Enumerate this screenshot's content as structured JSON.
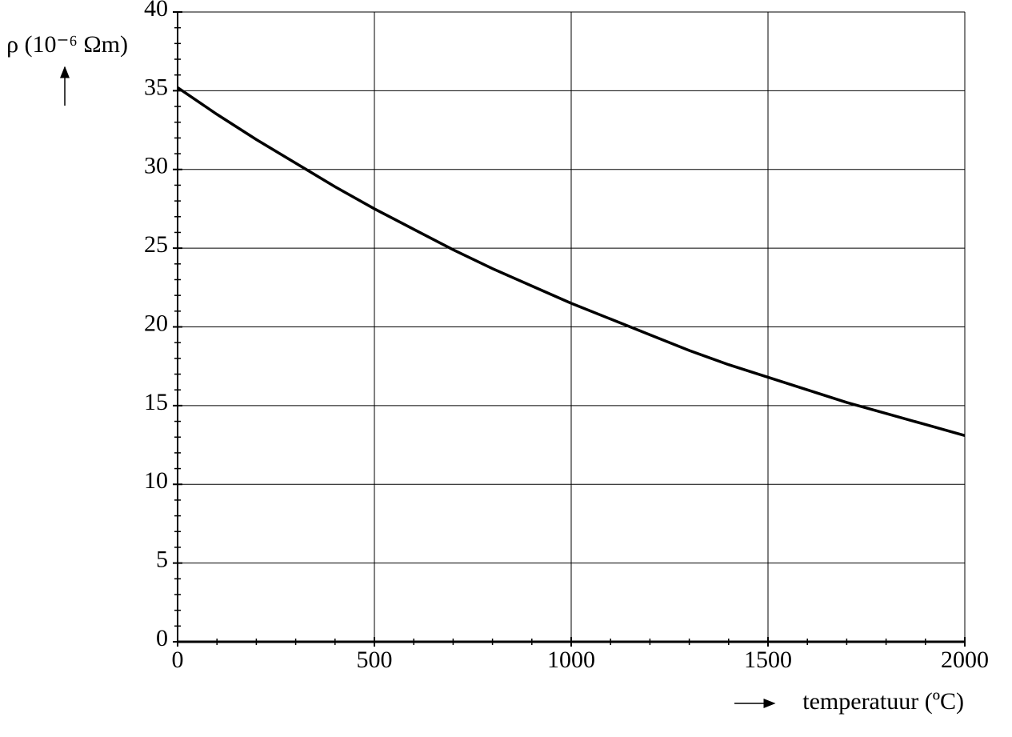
{
  "chart_data": {
    "type": "line",
    "ylabel": "ρ (10⁻⁶ Ωm)",
    "xlabel": "temperatuur (ºC)",
    "x": [
      0,
      100,
      200,
      300,
      400,
      500,
      600,
      700,
      800,
      900,
      1000,
      1100,
      1200,
      1300,
      1400,
      1500,
      1600,
      1700,
      1800,
      1900,
      2000
    ],
    "series": [
      {
        "color": "#000000",
        "values": [
          35.2,
          33.5,
          31.9,
          30.4,
          28.9,
          27.5,
          26.2,
          24.9,
          23.7,
          22.6,
          21.5,
          20.5,
          19.5,
          18.5,
          17.6,
          16.8,
          16.0,
          15.2,
          14.5,
          13.8,
          13.1
        ]
      }
    ],
    "xlim": [
      0,
      2000
    ],
    "ylim": [
      0,
      40
    ],
    "xticks": [
      0,
      500,
      1000,
      1500,
      2000
    ],
    "yticks": [
      0,
      5,
      10,
      15,
      20,
      25,
      30,
      35,
      40
    ],
    "xminorticks": [
      100,
      200,
      300,
      400,
      600,
      700,
      800,
      900,
      1100,
      1200,
      1300,
      1400,
      1600,
      1700,
      1800,
      1900
    ],
    "yminorticks": [
      1,
      2,
      3,
      4,
      6,
      7,
      8,
      9,
      11,
      12,
      13,
      14,
      16,
      17,
      18,
      19,
      21,
      22,
      23,
      24,
      26,
      27,
      28,
      29,
      31,
      32,
      33,
      34,
      36,
      37,
      38,
      39
    ],
    "grid": true
  }
}
